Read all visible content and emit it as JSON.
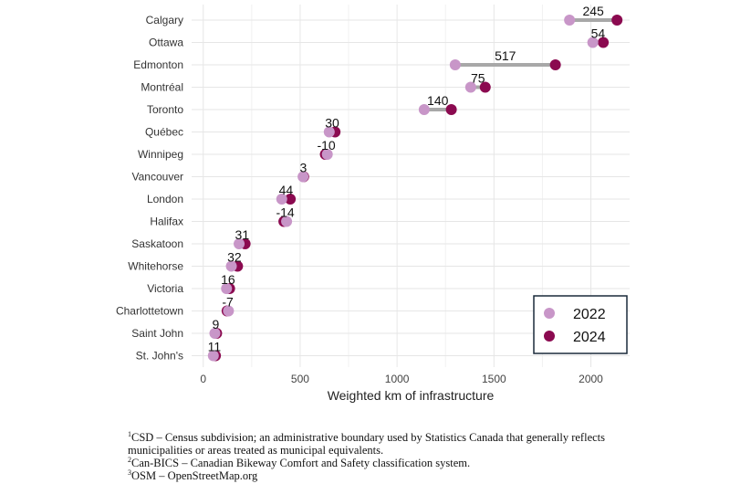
{
  "chart_data": {
    "type": "dumbbell",
    "title": "",
    "xlabel": "Weighted km of infrastructure",
    "ylabel": "",
    "xlim": [
      -60,
      2200
    ],
    "xticks": [
      0,
      500,
      1000,
      1500,
      2000
    ],
    "grid": true,
    "legend_position": "bottom-right",
    "series": [
      {
        "name": "2022",
        "color": "#c896c8"
      },
      {
        "name": "2024",
        "color": "#8b0a50"
      }
    ],
    "categories": [
      "Calgary",
      "Ottawa",
      "Edmonton",
      "Montréal",
      "Toronto",
      "Québec",
      "Winnipeg",
      "Vancouver",
      "London",
      "Halifax",
      "Saskatoon",
      "Whitehorse",
      "Victoria",
      "Charlottetown",
      "Saint John",
      "St. John's"
    ],
    "values_2022": [
      1890,
      2010,
      1300,
      1380,
      1140,
      650,
      640,
      515,
      405,
      430,
      185,
      145,
      120,
      130,
      60,
      52
    ],
    "values_2024": [
      2135,
      2064,
      1817,
      1455,
      1280,
      680,
      630,
      518,
      449,
      416,
      216,
      177,
      136,
      123,
      69,
      63
    ],
    "change_labels": [
      "245",
      "54",
      "517",
      "75",
      "140",
      "30",
      "-10",
      "3",
      "44",
      "-14",
      "31",
      "32",
      "16",
      "-7",
      "9",
      "11"
    ]
  },
  "footnotes": [
    {
      "num": "1",
      "text": "CSD – Census subdivision; an administrative boundary used by Statistics Canada that generally reflects municipalities or areas treated as municipal equivalents."
    },
    {
      "num": "2",
      "text": "Can-BICS – Canadian Bikeway Comfort and Safety classification system."
    },
    {
      "num": "3",
      "text": "OSM – OpenStreetMap.org"
    }
  ]
}
